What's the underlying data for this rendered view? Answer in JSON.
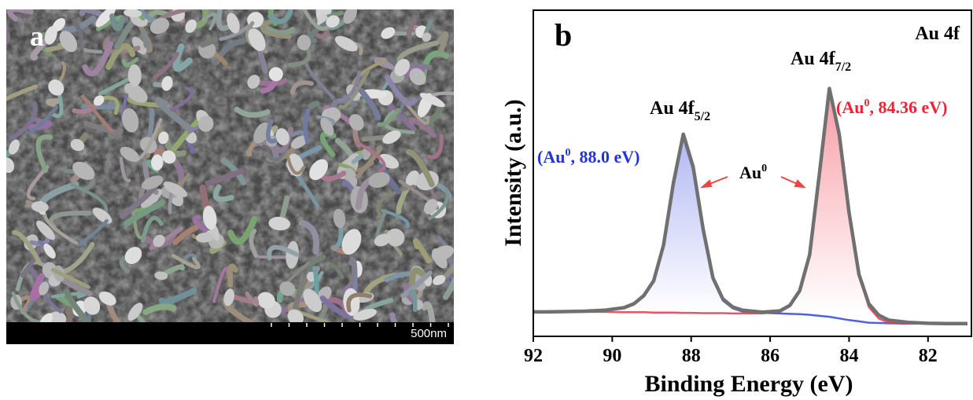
{
  "panel_a": {
    "label": "a",
    "scale_bar": "500nm"
  },
  "chart_data": {
    "type": "line",
    "panel_label": "b",
    "title": "Au 4f",
    "xlabel": "Binding Energy (eV)",
    "ylabel": "Intensity (a.u.)",
    "xlim": [
      92,
      80.9
    ],
    "xticks": [
      92,
      90,
      88,
      86,
      84,
      82
    ],
    "ylim": [
      0,
      100
    ],
    "x": [
      92.2,
      91.7,
      91.2,
      90.7,
      90.2,
      89.7,
      89.45,
      89.2,
      88.95,
      88.7,
      88.45,
      88.2,
      87.95,
      87.7,
      87.45,
      87.2,
      86.95,
      86.7,
      86.2,
      85.75,
      85.5,
      85.25,
      85.0,
      84.75,
      84.5,
      84.25,
      84.0,
      83.75,
      83.5,
      83.25,
      83.0,
      82.5,
      82.0,
      81.5,
      81.0
    ],
    "series": [
      {
        "color": "#3344dd",
        "fill": true,
        "values": [
          7.5,
          7.5,
          7.6,
          7.7,
          8.0,
          8.7,
          9.8,
          12.2,
          16.6,
          27.5,
          46.5,
          61,
          51,
          32,
          17.4,
          11,
          8.6,
          7.6,
          7.2,
          7.0,
          6.9,
          6.8,
          6.6,
          6.3,
          6.0,
          5.5,
          5.0,
          4.6,
          4.2,
          4.1,
          4.0,
          3.9,
          3.9,
          3.9,
          3.9
        ]
      },
      {
        "color": "#ee3344",
        "fill": true,
        "values": [
          7.5,
          7.5,
          7.5,
          7.5,
          7.5,
          7.4,
          7.4,
          7.4,
          7.3,
          7.3,
          7.3,
          7.2,
          7.2,
          7.1,
          7.1,
          7.1,
          7.0,
          7.0,
          7.0,
          7.6,
          9.3,
          13.8,
          24.6,
          49.5,
          75,
          61,
          37.5,
          19,
          9,
          5.5,
          4.2,
          3.9,
          3.9,
          3.9,
          3.9
        ]
      },
      {
        "color": "#707070",
        "fill": false,
        "values": [
          7.5,
          7.5,
          7.6,
          7.7,
          8.0,
          8.8,
          10,
          12.5,
          17,
          28,
          47,
          62,
          52,
          33,
          18,
          11.5,
          9,
          8,
          7.4,
          7.8,
          9.5,
          14,
          25,
          50,
          76,
          62,
          38,
          19,
          10,
          6.5,
          5,
          4.3,
          4,
          3.9,
          3.9
        ]
      }
    ],
    "annotations": {
      "peak_7_2": {
        "main": "Au 4f",
        "sub": "7/2"
      },
      "peak_5_2": {
        "main": "Au 4f",
        "sub": "5/2"
      },
      "state_88": {
        "before": "(Au",
        "sup": "0",
        "after": ", 88.0 eV)"
      },
      "state_84": {
        "before": "(Au",
        "sup": "0",
        "after": ", 84.36 eV)"
      },
      "center": {
        "main": "Au",
        "sup": "0"
      }
    }
  }
}
